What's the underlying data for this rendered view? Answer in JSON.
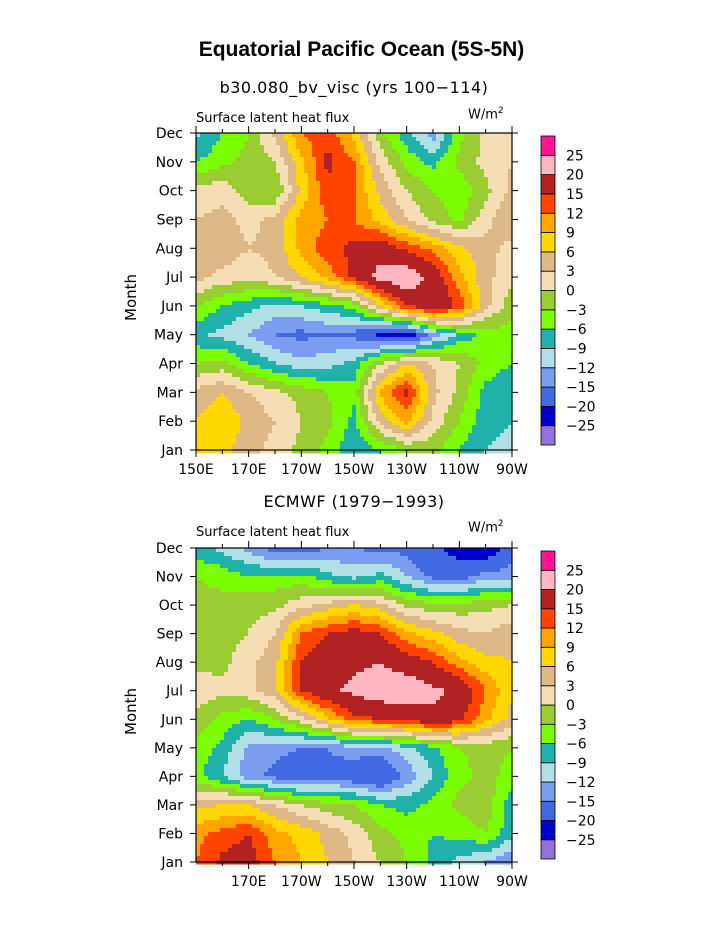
{
  "title": "Equatorial Pacific Ocean (5S-5N)",
  "colors": {
    "levels": [
      "#9370DB",
      "#0000CD",
      "#4169E1",
      "#7B9DF0",
      "#B0E0E6",
      "#20B2AA",
      "#7CFC00",
      "#9ACD32",
      "#F5DEB3",
      "#DEB887",
      "#FFD700",
      "#FFA500",
      "#FF4500",
      "#B22222",
      "#FFB6C1",
      "#FF1493"
    ]
  },
  "chart_data": [
    {
      "type": "heatmap",
      "subtitle": "b30.080_bv_visc (yrs 100−114)",
      "left_label": "Surface latent heat flux",
      "units": "W/m",
      "units_sup": "2",
      "ylabel": "Month",
      "y_categories": [
        "Jan",
        "Feb",
        "Mar",
        "Apr",
        "May",
        "Jun",
        "Jul",
        "Aug",
        "Sep",
        "Oct",
        "Nov",
        "Dec"
      ],
      "x_tick_labels": [
        "150E",
        "170E",
        "170W",
        "150W",
        "130W",
        "110W",
        "90W"
      ],
      "x_tick_lon": [
        150,
        170,
        190,
        210,
        230,
        250,
        270
      ],
      "xlim": [
        150,
        270
      ],
      "colorbar_labels": [
        "25",
        "20",
        "15",
        "12",
        "9",
        "6",
        "3",
        "0",
        "−3",
        "−6",
        "−9",
        "−12",
        "−15",
        "−20",
        "−25"
      ],
      "grid_lon": [
        150,
        160,
        170,
        180,
        190,
        200,
        210,
        220,
        230,
        240,
        250,
        260,
        270
      ],
      "values": [
        [
          8,
          7,
          4,
          2,
          -1,
          -4,
          -9,
          -6,
          -3,
          -2,
          -6,
          -9,
          -10
        ],
        [
          6,
          9,
          5,
          3,
          0,
          -2,
          -7,
          4,
          10,
          2,
          -3,
          -8,
          -9
        ],
        [
          4,
          6,
          3,
          1,
          -1,
          -3,
          -5,
          10,
          16,
          4,
          -1,
          -7,
          -9
        ],
        [
          -3,
          -2,
          -6,
          -9,
          -11,
          -10,
          -8,
          0,
          6,
          3,
          0,
          -4,
          -6
        ],
        [
          -8,
          -10,
          -12,
          -15,
          -16,
          -15,
          -16,
          -21,
          -23,
          -14,
          -8,
          -5,
          -4
        ],
        [
          -3,
          -6,
          -8,
          -10,
          -9,
          -7,
          -5,
          6,
          15,
          20,
          14,
          4,
          -2
        ],
        [
          4,
          2,
          1,
          3,
          6,
          10,
          16,
          22,
          24,
          18,
          10,
          4,
          1
        ],
        [
          6,
          5,
          3,
          4,
          10,
          14,
          16,
          18,
          14,
          11,
          7,
          4,
          2
        ],
        [
          3,
          4,
          2,
          4,
          10,
          12,
          12,
          8,
          3,
          -1,
          -4,
          2,
          6
        ],
        [
          1,
          2,
          -2,
          -3,
          7,
          14,
          12,
          5,
          0,
          -3,
          -5,
          -1,
          4
        ],
        [
          -6,
          -4,
          -2,
          0,
          8,
          16,
          12,
          2,
          -4,
          -7,
          -2,
          1,
          3
        ],
        [
          -10,
          -6,
          -3,
          4,
          12,
          14,
          8,
          -2,
          -8,
          -14,
          -4,
          1,
          2
        ]
      ]
    },
    {
      "type": "heatmap",
      "subtitle": "ECMWF (1979−1993)",
      "left_label": "Surface latent heat flux",
      "units": "W/m",
      "units_sup": "2",
      "ylabel": "Month",
      "y_categories": [
        "Jan",
        "Feb",
        "Mar",
        "Apr",
        "May",
        "Jun",
        "Jul",
        "Aug",
        "Sep",
        "Oct",
        "Nov",
        "Dec"
      ],
      "x_tick_labels": [
        "170E",
        "170W",
        "150W",
        "130W",
        "110W",
        "90W"
      ],
      "x_tick_lon": [
        170,
        190,
        210,
        230,
        250,
        270
      ],
      "xlim": [
        150,
        270
      ],
      "colorbar_labels": [
        "25",
        "20",
        "15",
        "12",
        "9",
        "6",
        "3",
        "0",
        "−3",
        "−6",
        "−9",
        "−12",
        "−15",
        "−20",
        "−25"
      ],
      "grid_lon": [
        150,
        160,
        170,
        180,
        190,
        200,
        210,
        220,
        230,
        240,
        250,
        260,
        270
      ],
      "values": [
        [
          12,
          16,
          17,
          12,
          9,
          6,
          3,
          0,
          -3,
          -7,
          -10,
          -12,
          -15
        ],
        [
          11,
          13,
          15,
          10,
          8,
          5,
          2,
          -2,
          -4,
          -6,
          -5,
          -3,
          -8
        ],
        [
          5,
          6,
          6,
          3,
          0,
          -2,
          -3,
          -6,
          -7,
          -5,
          -2,
          -1,
          -8
        ],
        [
          -5,
          -9,
          -14,
          -16,
          -18,
          -16,
          -18,
          -20,
          -14,
          -9,
          -4,
          -2,
          -4
        ],
        [
          -4,
          -7,
          -13,
          -14,
          -15,
          -15,
          -13,
          -13,
          -10,
          -7,
          -3,
          -2,
          -3
        ],
        [
          -1,
          -4,
          -6,
          -3,
          2,
          8,
          14,
          15,
          16,
          19,
          16,
          10,
          5
        ],
        [
          2,
          1,
          2,
          5,
          15,
          19,
          21,
          23,
          24,
          21,
          19,
          12,
          6
        ],
        [
          -1,
          -1,
          2,
          5,
          15,
          19,
          19,
          20,
          17,
          15,
          10,
          7,
          6
        ],
        [
          -1,
          -1,
          0,
          3,
          12,
          15,
          17,
          15,
          10,
          7,
          4,
          3,
          5
        ],
        [
          -2,
          -2,
          -1,
          -1,
          2,
          4,
          6,
          4,
          -1,
          -2,
          -2,
          -1,
          0
        ],
        [
          -3,
          -4,
          -6,
          -5,
          -5,
          -8,
          -10,
          -8,
          -12,
          -16,
          -17,
          -13,
          -14
        ],
        [
          -8,
          -10,
          -13,
          -17,
          -17,
          -15,
          -15,
          -16,
          -16,
          -19,
          -22,
          -25,
          -16
        ]
      ]
    }
  ]
}
